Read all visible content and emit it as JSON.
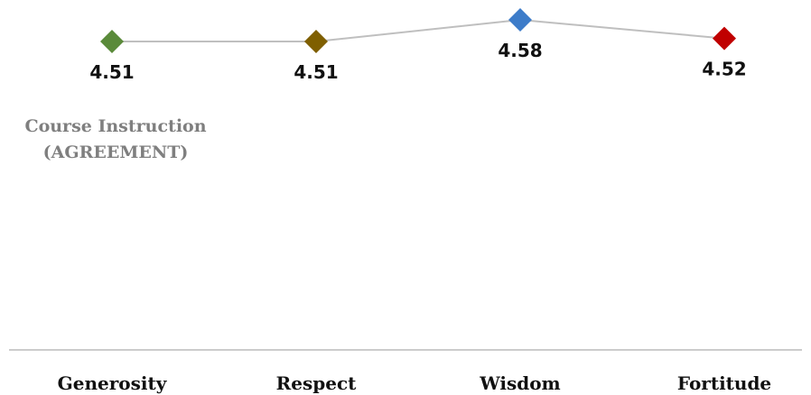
{
  "chart_data": {
    "type": "line",
    "title_line1": "Course Instruction",
    "title_line2": "(AGREEMENT)",
    "categories": [
      "Generosity",
      "Respect",
      "Wisdom",
      "Fortitude"
    ],
    "values": [
      4.51,
      4.51,
      4.58,
      4.52
    ],
    "data_labels": [
      "4.51",
      "4.51",
      "4.58",
      "4.52"
    ],
    "marker_colors": [
      "#5a8a3a",
      "#7f5f00",
      "#3d7cc9",
      "#c00000"
    ],
    "line_color": "#bfbfbf",
    "axis_color": "#9a9a9a",
    "grid": false
  }
}
